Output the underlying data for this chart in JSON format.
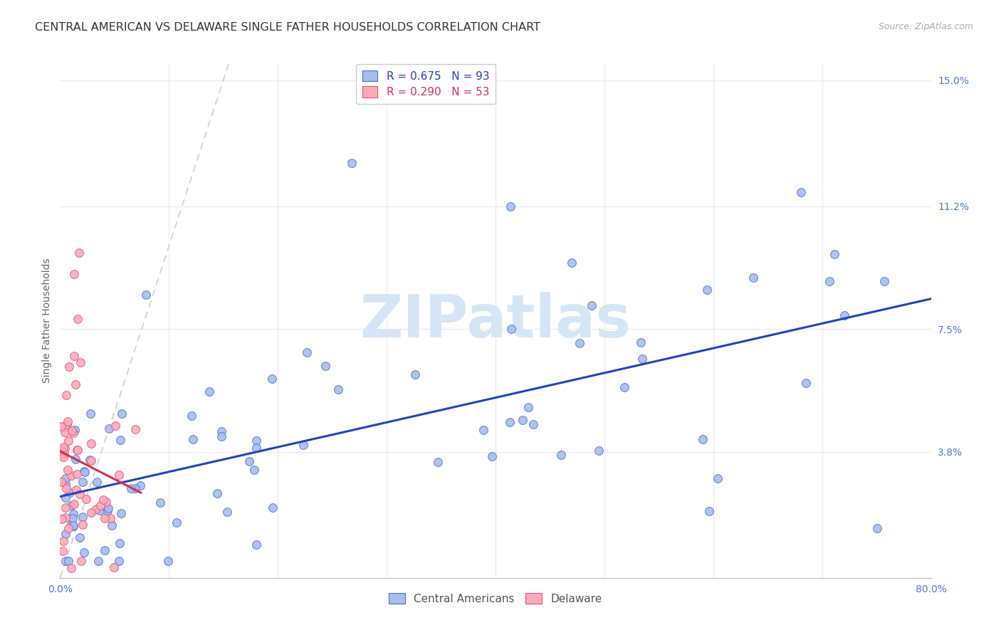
{
  "title": "CENTRAL AMERICAN VS DELAWARE SINGLE FATHER HOUSEHOLDS CORRELATION CHART",
  "source": "Source: ZipAtlas.com",
  "ylabel": "Single Father Households",
  "xlim": [
    0.0,
    0.8
  ],
  "ylim": [
    0.0,
    0.155
  ],
  "xticks": [
    0.0,
    0.1,
    0.2,
    0.3,
    0.4,
    0.5,
    0.6,
    0.7,
    0.8
  ],
  "ytick_vals": [
    0.0,
    0.038,
    0.075,
    0.112,
    0.15
  ],
  "ytick_labels": [
    "",
    "3.8%",
    "7.5%",
    "11.2%",
    "15.0%"
  ],
  "blue_R": 0.675,
  "blue_N": 93,
  "pink_R": 0.29,
  "pink_N": 53,
  "blue_fill": "#AABBEE",
  "blue_edge": "#4477CC",
  "pink_fill": "#FFAABB",
  "pink_edge": "#DD5577",
  "blue_trend": "#2244BB",
  "pink_trend": "#CC3355",
  "ref_line_color": "#CCCCDD",
  "grid_color": "#E8E8F0",
  "watermark": "ZIPatlas",
  "watermark_color": "#D5E5F5",
  "bg_color": "#FFFFFF",
  "title_color": "#333333",
  "tick_color": "#5577CC",
  "title_fontsize": 11.5,
  "axis_label_fontsize": 10,
  "tick_fontsize": 10,
  "legend_fontsize": 11
}
